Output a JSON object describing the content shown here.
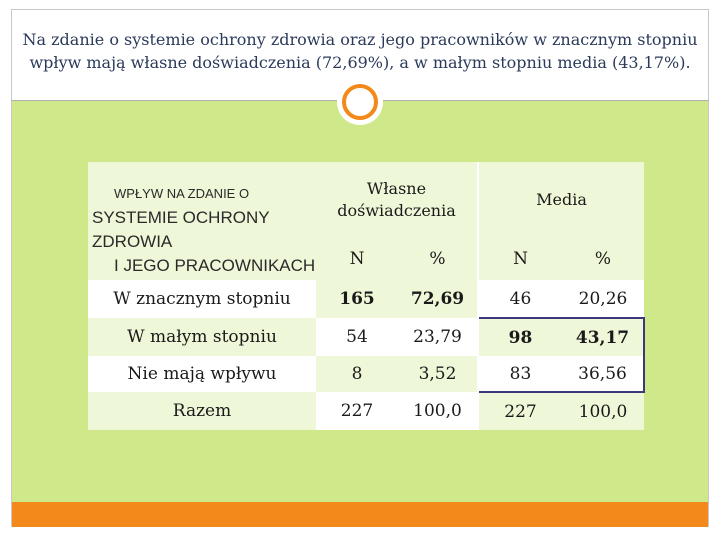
{
  "slide": {
    "title_line1": "Na zdanie o systemie ochrony zdrowia oraz jego pracowników w znacznym stopniu",
    "title_line2": "wpływ mają własne doświadczenia (72,69%), a w małym stopniu media (43,17%)."
  },
  "table": {
    "row_header": {
      "line1": "WPŁYW NA ZDANIE O",
      "line2": "SYSTEMIE OCHRONY ZDROWIA",
      "line3": "I JEGO PRACOWNIKACH"
    },
    "groups": [
      "Własne doświadczenia",
      "Media"
    ],
    "sub_headers": [
      "N",
      "%",
      "N",
      "%"
    ],
    "rows": [
      {
        "label": "W znacznym stopniu",
        "values": [
          "165",
          "72,69",
          "46",
          "20,26"
        ]
      },
      {
        "label": "W małym stopniu",
        "values": [
          "54",
          "23,79",
          "98",
          "43,17"
        ]
      },
      {
        "label": "Nie mają wpływu",
        "values": [
          "8",
          "3,52",
          "83",
          "36,56"
        ]
      },
      {
        "label": "Razem",
        "values": [
          "227",
          "100,0",
          "227",
          "100,0"
        ]
      }
    ]
  },
  "colors": {
    "background_green": "#cfe98a",
    "accent_orange": "#f2891a",
    "title_text": "#2a3a5a",
    "cell_light": "#ffffff",
    "cell_tint": "#eef7d8",
    "highlight_border": "#3a3a7a"
  }
}
